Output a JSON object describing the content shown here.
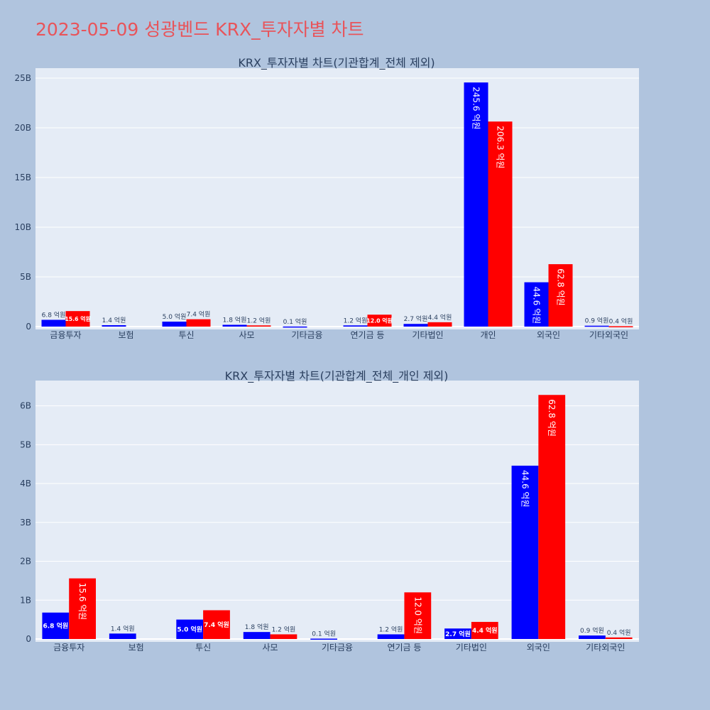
{
  "page_title": "2023-05-09 성광벤드 KRX_투자자별 차트",
  "colors": {
    "buy": "#0000ff",
    "sell": "#ff0000"
  },
  "chart_data": [
    {
      "type": "bar",
      "title": "KRX_투자자별 차트(기관합계_전체 제외)",
      "categories": [
        "금융투자",
        "보험",
        "투신",
        "사모",
        "기타금융",
        "연기금 등",
        "기타법인",
        "개인",
        "외국인",
        "기타외국인"
      ],
      "series": [
        {
          "color": "#0000ff",
          "values": [
            680000000,
            140000000,
            500000000,
            180000000,
            10000000,
            120000000,
            270000000,
            24560000000,
            4460000000,
            90000000
          ],
          "labels": [
            "6.8 억원",
            "1.4 억원",
            "5.0 억원",
            "1.8 억원",
            "0.1 억원",
            "1.2 억원",
            "2.7 억원",
            "245.6 억원",
            "44.6 억원",
            "0.9 억원"
          ]
        },
        {
          "color": "#ff0000",
          "values": [
            1560000000,
            0,
            740000000,
            120000000,
            0,
            1200000000,
            440000000,
            20630000000,
            6280000000,
            40000000
          ],
          "labels": [
            "15.6 억원",
            "",
            "7.4 억원",
            "1.2 억원",
            "",
            "12.0 억원",
            "4.4 억원",
            "206.3 억원",
            "62.8 억원",
            "0.4 억원"
          ]
        }
      ],
      "ylim": [
        0,
        26000000000
      ],
      "yticks": [
        0,
        5000000000,
        10000000000,
        15000000000,
        20000000000,
        25000000000
      ],
      "ytick_labels": [
        "0",
        "5B",
        "10B",
        "15B",
        "20B",
        "25B"
      ],
      "grid": true
    },
    {
      "type": "bar",
      "title": "KRX_투자자별 차트(기관합계_전체_개인 제외)",
      "categories": [
        "금융투자",
        "보험",
        "투신",
        "사모",
        "기타금융",
        "연기금 등",
        "기타법인",
        "외국인",
        "기타외국인"
      ],
      "series": [
        {
          "color": "#0000ff",
          "values": [
            680000000,
            140000000,
            500000000,
            180000000,
            10000000,
            120000000,
            270000000,
            4460000000,
            90000000
          ],
          "labels": [
            "6.8 억원",
            "1.4 억원",
            "5.0 억원",
            "1.8 억원",
            "0.1 억원",
            "1.2 억원",
            "2.7 억원",
            "44.6 억원",
            "0.9 억원"
          ]
        },
        {
          "color": "#ff0000",
          "values": [
            1560000000,
            0,
            740000000,
            120000000,
            0,
            1200000000,
            440000000,
            6280000000,
            40000000
          ],
          "labels": [
            "15.6 억원",
            "",
            "7.4 억원",
            "1.2 억원",
            "",
            "12.0 억원",
            "4.4 억원",
            "62.8 억원",
            "0.4 억원"
          ]
        }
      ],
      "ylim": [
        0,
        6650000000
      ],
      "yticks": [
        0,
        1000000000,
        2000000000,
        3000000000,
        4000000000,
        5000000000,
        6000000000
      ],
      "ytick_labels": [
        "0",
        "1B",
        "2B",
        "3B",
        "4B",
        "5B",
        "6B"
      ],
      "grid": true
    }
  ]
}
